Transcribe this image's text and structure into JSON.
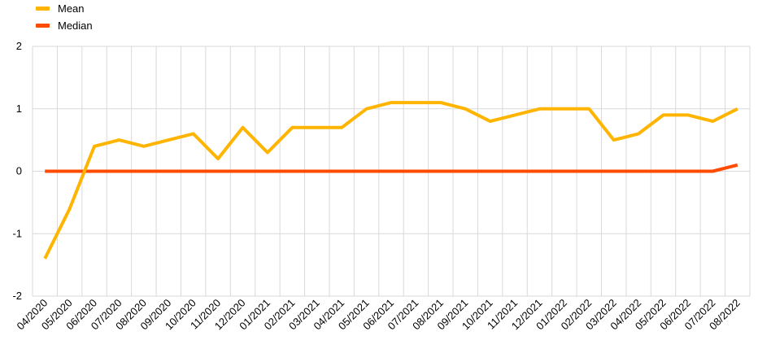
{
  "legend": {
    "items": [
      {
        "label": "Mean",
        "color": "#FFB400"
      },
      {
        "label": "Median",
        "color": "#FF4B00"
      }
    ]
  },
  "chart_data": {
    "type": "line",
    "categories": [
      "04/2020",
      "05/2020",
      "06/2020",
      "07/2020",
      "08/2020",
      "09/2020",
      "10/2020",
      "11/2020",
      "12/2020",
      "01/2021",
      "02/2021",
      "03/2021",
      "04/2021",
      "05/2021",
      "06/2021",
      "07/2021",
      "08/2021",
      "09/2021",
      "10/2021",
      "11/2021",
      "12/2021",
      "01/2022",
      "02/2022",
      "03/2022",
      "04/2022",
      "05/2022",
      "06/2022",
      "07/2022",
      "08/2022"
    ],
    "series": [
      {
        "name": "Mean",
        "color": "#FFB400",
        "values": [
          -1.4,
          -0.6,
          0.4,
          0.5,
          0.4,
          0.5,
          0.6,
          0.2,
          0.7,
          0.3,
          0.7,
          0.7,
          0.7,
          1.0,
          1.1,
          1.1,
          1.1,
          1.0,
          0.8,
          0.9,
          1.0,
          1.0,
          1.0,
          0.5,
          0.6,
          0.9,
          0.9,
          0.8,
          1.0
        ]
      },
      {
        "name": "Median",
        "color": "#FF4B00",
        "values": [
          0,
          0,
          0,
          0,
          0,
          0,
          0,
          0,
          0,
          0,
          0,
          0,
          0,
          0,
          0,
          0,
          0,
          0,
          0,
          0,
          0,
          0,
          0,
          0,
          0,
          0,
          0,
          0,
          0.1
        ]
      }
    ],
    "ylim": [
      -2,
      2
    ],
    "yticks": [
      -2,
      -1,
      0,
      1,
      2
    ],
    "grid": true,
    "legend_position": "top-left"
  }
}
